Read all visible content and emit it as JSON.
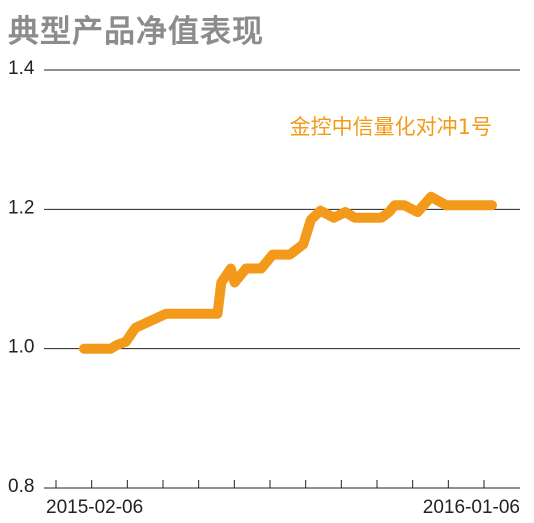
{
  "title": "典型产品净值表现",
  "colors": {
    "line": "#f39a1a",
    "grid": "#222222",
    "title": "#8c8c8c"
  },
  "chart_data": {
    "type": "line",
    "title": "典型产品净值表现",
    "xlabel": "",
    "ylabel": "",
    "ylim": [
      0.8,
      1.4
    ],
    "yticks": [
      "0.8",
      "1.0",
      "1.2",
      "1.4"
    ],
    "x_tick_labels": [
      "2015-02-06",
      "2016-01-06"
    ],
    "grid": true,
    "legend": "top-right",
    "series": [
      {
        "name": "金控中信量化对冲1号",
        "x": [
          0,
          3,
          8,
          14,
          17,
          22,
          27,
          35,
          43,
          56,
          64,
          68,
          70,
          72,
          77,
          79,
          85,
          91,
          93,
          99,
          102,
          108,
          115,
          119,
          124,
          131,
          137,
          142,
          148,
          156,
          160,
          163,
          168,
          175,
          182,
          190,
          199,
          205,
          211,
          214
        ],
        "y": [
          1.0,
          1.0,
          1.0,
          1.0,
          1.005,
          1.01,
          1.03,
          1.04,
          1.05,
          1.05,
          1.05,
          1.05,
          1.05,
          1.095,
          1.115,
          1.095,
          1.115,
          1.115,
          1.115,
          1.135,
          1.135,
          1.135,
          1.15,
          1.185,
          1.198,
          1.188,
          1.196,
          1.188,
          1.188,
          1.188,
          1.196,
          1.206,
          1.206,
          1.196,
          1.218,
          1.206,
          1.206,
          1.206,
          1.206,
          1.206
        ]
      }
    ]
  }
}
